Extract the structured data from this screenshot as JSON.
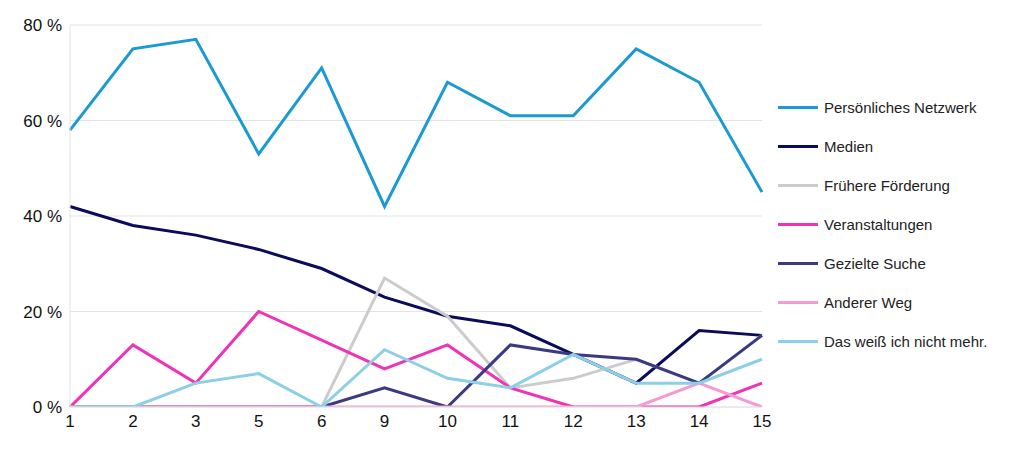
{
  "chart_data": {
    "type": "line",
    "categories": [
      "1",
      "2",
      "3",
      "5",
      "6",
      "9",
      "10",
      "11",
      "12",
      "13",
      "14",
      "15"
    ],
    "ylim": [
      0,
      80
    ],
    "yticks": [
      {
        "value": 0,
        "label": "0 %"
      },
      {
        "value": 20,
        "label": "20 %"
      },
      {
        "value": 40,
        "label": "40 %"
      },
      {
        "value": 60,
        "label": "60 %"
      },
      {
        "value": 80,
        "label": "80 %"
      }
    ],
    "grid": true,
    "legend": "right",
    "series": [
      {
        "name": "Persönliches Netzwerk",
        "color": "#1a9ad0",
        "values": [
          58,
          75,
          77,
          53,
          71,
          42,
          68,
          61,
          61,
          75,
          68,
          45
        ]
      },
      {
        "name": "Medien",
        "color": "#0b0b5c",
        "values": [
          42,
          38,
          36,
          33,
          29,
          23,
          19,
          17,
          11,
          5,
          16,
          15
        ]
      },
      {
        "name": "Frühere Förderung",
        "color": "#cccccc",
        "values": [
          0,
          0,
          0,
          0,
          0,
          27,
          19,
          4,
          6,
          10,
          5,
          15
        ]
      },
      {
        "name": "Veranstaltungen",
        "color": "#f032b4",
        "values": [
          0,
          13,
          5,
          20,
          14,
          8,
          13,
          4,
          0,
          0,
          0,
          5
        ]
      },
      {
        "name": "Gezielte Suche",
        "color": "#3a3a80",
        "values": [
          0,
          0,
          0,
          0,
          0,
          4,
          0,
          13,
          11,
          10,
          5,
          15
        ]
      },
      {
        "name": "Anderer Weg",
        "color": "#f59ad2",
        "values": [
          0,
          0,
          0,
          0,
          0,
          0,
          0,
          0,
          0,
          0,
          5,
          0
        ]
      },
      {
        "name": "Das weiß ich nicht mehr.",
        "color": "#8ccfe6",
        "values": [
          0,
          0,
          5,
          7,
          0,
          12,
          6,
          4,
          11,
          5,
          5,
          10
        ]
      }
    ]
  }
}
